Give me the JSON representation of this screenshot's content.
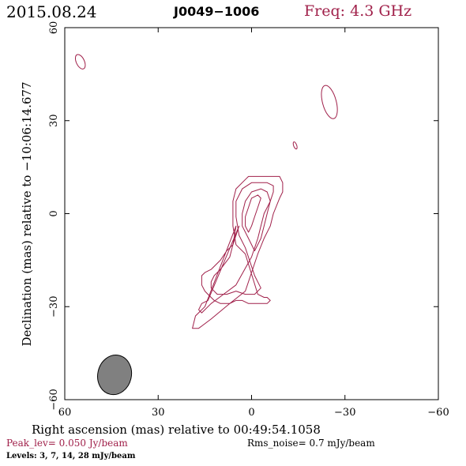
{
  "header": {
    "date": "2015.08.24",
    "source": "J0049−1006",
    "freq": "Freq: 4.3 GHz"
  },
  "footer": {
    "peak": "Peak_lev=  0.050 Jy/beam",
    "noise": "Rms_noise=   0.7 mJy/beam",
    "levels": "Levels:   3,    7,   14,   28 mJy/beam"
  },
  "chart_data": {
    "type": "contour",
    "xlabel": "Right ascension (mas) relative to 00:49:54.1058",
    "ylabel": "Declination (mas) relative to −10:06:14.677",
    "xlim": [
      60,
      -60
    ],
    "ylim": [
      -60,
      60
    ],
    "xticks": [
      60,
      30,
      0,
      -30,
      -60
    ],
    "xtick_labels": [
      "60",
      "30",
      "0",
      "−30",
      "−60"
    ],
    "yticks": [
      60,
      30,
      0,
      -30,
      -60
    ],
    "ytick_labels": [
      "60",
      "30",
      "0",
      "−30",
      "−60"
    ],
    "contour_color": "#a0204a",
    "levels_mJy_per_beam": [
      3,
      7,
      14,
      28
    ],
    "beam": {
      "x": 44,
      "y": -52,
      "major": 12.8,
      "minor": 5.4,
      "pa_deg": -13,
      "color": "#808080"
    },
    "contours": [
      {
        "level": 3,
        "points": [
          [
            15,
            -30
          ],
          [
            18,
            -33
          ],
          [
            19,
            -37
          ],
          [
            17,
            -37
          ],
          [
            13,
            -34
          ],
          [
            7,
            -29
          ],
          [
            2,
            -25
          ],
          [
            -2,
            -13
          ],
          [
            -4,
            -8
          ],
          [
            -6,
            -4
          ],
          [
            -7,
            0
          ],
          [
            -9,
            5
          ],
          [
            -10,
            7
          ],
          [
            -10,
            10
          ],
          [
            -9,
            12
          ],
          [
            -5,
            12
          ],
          [
            -1,
            12
          ],
          [
            0,
            12
          ],
          [
            1,
            12
          ],
          [
            2,
            11
          ],
          [
            5,
            8
          ],
          [
            6,
            4
          ],
          [
            6,
            -4
          ],
          [
            5,
            -10
          ],
          [
            2,
            -13
          ],
          [
            -2,
            -26
          ],
          [
            -4,
            -27
          ],
          [
            -5,
            -27
          ],
          [
            -6,
            -28
          ],
          [
            -5,
            -29
          ],
          [
            -1,
            -29
          ],
          [
            1,
            -29
          ],
          [
            3,
            -28
          ],
          [
            5,
            -28
          ],
          [
            7,
            -29
          ],
          [
            10,
            -29
          ],
          [
            12,
            -28
          ],
          [
            14,
            -26
          ],
          [
            15,
            -25
          ],
          [
            16,
            -23
          ],
          [
            16,
            -22
          ],
          [
            16,
            -20
          ],
          [
            15,
            -19
          ],
          [
            13,
            -18
          ],
          [
            10,
            -15
          ],
          [
            8,
            -12
          ],
          [
            6,
            -10
          ],
          [
            5,
            -4
          ]
        ]
      },
      {
        "level": 7,
        "points": [
          [
            14,
            -28
          ],
          [
            16,
            -29
          ],
          [
            17,
            -31
          ],
          [
            16,
            -32
          ],
          [
            13,
            -29
          ],
          [
            9,
            -26
          ],
          [
            5,
            -23
          ],
          [
            0,
            -14
          ],
          [
            -2,
            -8
          ],
          [
            -3,
            -4
          ],
          [
            -4,
            0
          ],
          [
            -6,
            4
          ],
          [
            -7,
            7
          ],
          [
            -7,
            9
          ],
          [
            -5,
            10
          ],
          [
            -3,
            10
          ],
          [
            0,
            10
          ],
          [
            3,
            8
          ],
          [
            5,
            4
          ],
          [
            5,
            -1
          ],
          [
            4,
            -7
          ],
          [
            2,
            -11
          ],
          [
            -1,
            -20
          ],
          [
            -3,
            -24
          ],
          [
            -1,
            -26
          ],
          [
            2,
            -26
          ],
          [
            5,
            -25
          ],
          [
            8,
            -26
          ],
          [
            11,
            -26
          ],
          [
            13,
            -24
          ],
          [
            13,
            -22
          ],
          [
            12,
            -20
          ],
          [
            10,
            -18
          ],
          [
            7,
            -14
          ],
          [
            6,
            -10
          ],
          [
            4,
            -4
          ]
        ]
      },
      {
        "level": 14,
        "points": [
          [
            -1,
            -12
          ],
          [
            -3,
            -8
          ],
          [
            -4,
            -4
          ],
          [
            -5,
            0
          ],
          [
            -6,
            4
          ],
          [
            -5,
            7
          ],
          [
            -3,
            8
          ],
          [
            0,
            7
          ],
          [
            2,
            4
          ],
          [
            3,
            0
          ],
          [
            3,
            -4
          ],
          [
            1,
            -8
          ]
        ]
      },
      {
        "level": 28,
        "points": [
          [
            1,
            -6
          ],
          [
            0,
            -4
          ],
          [
            -1,
            -1
          ],
          [
            -2,
            2
          ],
          [
            -3,
            5
          ],
          [
            -2,
            6
          ],
          [
            0,
            5
          ],
          [
            1,
            2
          ],
          [
            2,
            -1
          ],
          [
            2,
            -4
          ]
        ]
      }
    ],
    "isolated_components": [
      {
        "x": 55,
        "y": 49,
        "rx": 1.3,
        "ry": 2.5,
        "angle": -25
      },
      {
        "x": -25,
        "y": 36,
        "rx": 2.2,
        "ry": 5.5,
        "angle": -15
      },
      {
        "x": -14,
        "y": 22,
        "rx": 0.5,
        "ry": 1.2,
        "angle": -20
      }
    ]
  }
}
